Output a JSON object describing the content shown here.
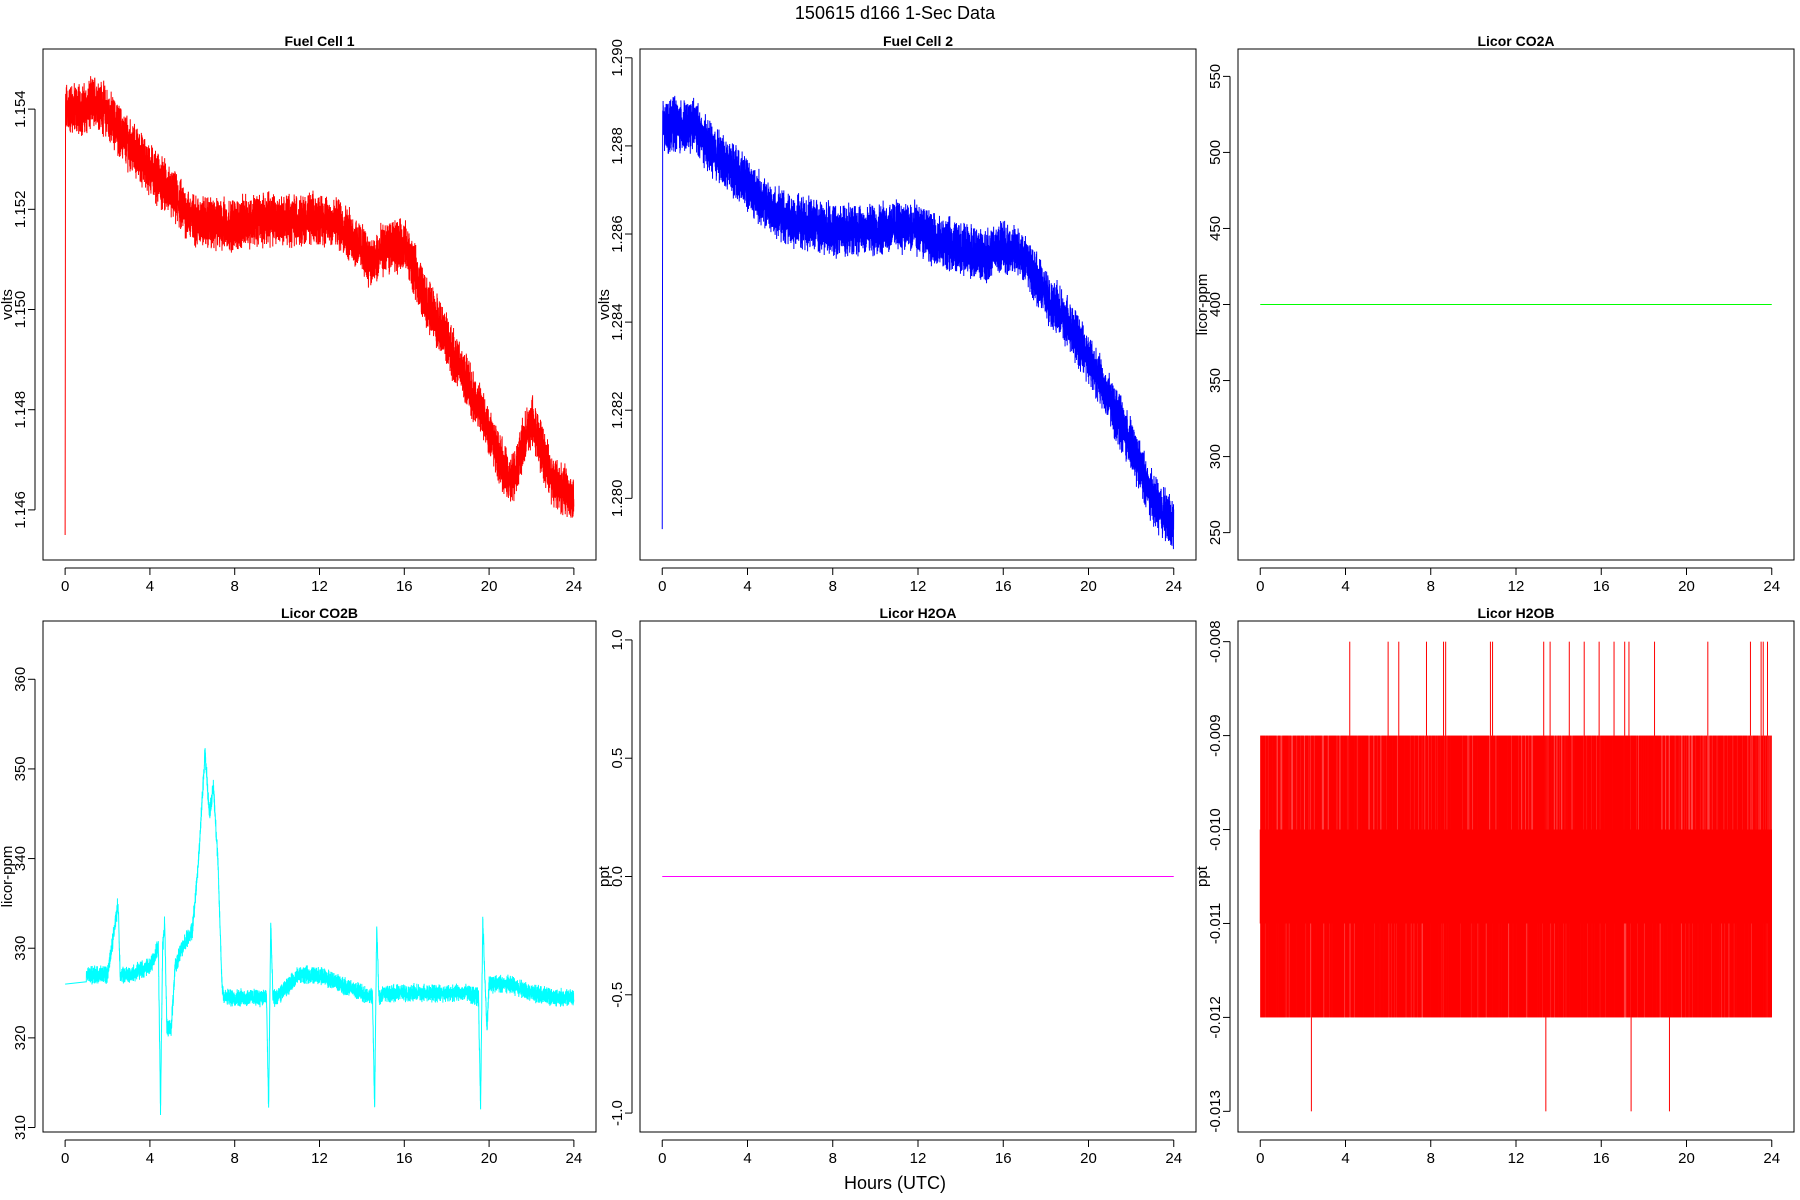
{
  "page_title": "150615   d166   1-Sec Data",
  "shared_xlabel": "Hours (UTC)",
  "chart_data": [
    {
      "type": "line",
      "title": "Fuel Cell 1",
      "ylabel": "volts",
      "color": "#ff0000",
      "xlim": [
        0,
        24
      ],
      "ylim": [
        1.145,
        1.1552
      ],
      "xticks": [
        0,
        4,
        8,
        12,
        16,
        20,
        24
      ],
      "xtick_labels": [
        "0",
        "4",
        "8",
        "12",
        "16",
        "20",
        "24"
      ],
      "yticks": [
        1.146,
        1.148,
        1.15,
        1.152,
        1.154
      ],
      "ytick_labels": [
        "1.146",
        "1.148",
        "1.150",
        "1.152",
        "1.154"
      ],
      "noise_band": 0.0008,
      "x": [
        0,
        0.02,
        0.05,
        0.5,
        1,
        1.5,
        2,
        3,
        4,
        5,
        6,
        7,
        8,
        9,
        10,
        11,
        12,
        13,
        14,
        14.5,
        15,
        16,
        17,
        18,
        19,
        20,
        21,
        22,
        23,
        24
      ],
      "y": [
        1.1455,
        1.154,
        1.154,
        1.154,
        1.154,
        1.1542,
        1.1539,
        1.1533,
        1.1528,
        1.1523,
        1.1518,
        1.1517,
        1.1517,
        1.1518,
        1.1518,
        1.1518,
        1.1518,
        1.1517,
        1.1512,
        1.1509,
        1.1512,
        1.1513,
        1.1502,
        1.1494,
        1.1485,
        1.1476,
        1.1465,
        1.1478,
        1.1466,
        1.1462
      ]
    },
    {
      "type": "line",
      "title": "Fuel Cell 2",
      "ylabel": "volts",
      "color": "#0000ff",
      "xlim": [
        0,
        24
      ],
      "ylim": [
        1.2786,
        1.2902
      ],
      "xticks": [
        0,
        4,
        8,
        12,
        16,
        20,
        24
      ],
      "xtick_labels": [
        "0",
        "4",
        "8",
        "12",
        "16",
        "20",
        "24"
      ],
      "yticks": [
        1.28,
        1.282,
        1.284,
        1.286,
        1.288,
        1.29
      ],
      "ytick_labels": [
        "1.280",
        "1.282",
        "1.284",
        "1.286",
        "1.288",
        "1.290"
      ],
      "noise_band": 0.0009,
      "x": [
        0,
        0.02,
        0.05,
        0.5,
        1,
        1.5,
        2,
        3,
        4,
        5,
        6,
        7,
        8,
        9,
        10,
        11,
        12,
        13,
        14,
        15,
        16,
        17,
        18,
        19,
        20,
        21,
        22,
        23,
        24
      ],
      "y": [
        1.2793,
        1.2884,
        1.2884,
        1.2885,
        1.2884,
        1.2885,
        1.2881,
        1.2876,
        1.2871,
        1.2866,
        1.2863,
        1.2862,
        1.2861,
        1.2861,
        1.2861,
        1.2862,
        1.2861,
        1.2858,
        1.2857,
        1.2855,
        1.2857,
        1.2855,
        1.2846,
        1.284,
        1.2832,
        1.2822,
        1.2812,
        1.28,
        1.2794
      ]
    },
    {
      "type": "line",
      "title": "Licor CO2A",
      "ylabel": "licor-ppm",
      "color": "#00ff00",
      "xlim": [
        0,
        24
      ],
      "ylim": [
        232,
        568
      ],
      "xticks": [
        0,
        4,
        8,
        12,
        16,
        20,
        24
      ],
      "xtick_labels": [
        "0",
        "4",
        "8",
        "12",
        "16",
        "20",
        "24"
      ],
      "yticks": [
        250,
        300,
        350,
        400,
        450,
        500,
        550
      ],
      "ytick_labels": [
        "250",
        "300",
        "350",
        "400",
        "450",
        "500",
        "550"
      ],
      "noise_band": 0,
      "x": [
        0,
        24
      ],
      "y": [
        400,
        400
      ]
    },
    {
      "type": "line",
      "title": "Licor CO2B",
      "ylabel": "licor-ppm",
      "color": "#00ffff",
      "xlim": [
        0,
        24
      ],
      "ylim": [
        309.5,
        366.5
      ],
      "xticks": [
        0,
        4,
        8,
        12,
        16,
        20,
        24
      ],
      "xtick_labels": [
        "0",
        "4",
        "8",
        "12",
        "16",
        "20",
        "24"
      ],
      "yticks": [
        310,
        320,
        330,
        340,
        350,
        360
      ],
      "ytick_labels": [
        "310",
        "320",
        "330",
        "340",
        "350",
        "360"
      ],
      "noise_band": 1.5,
      "x": [
        0,
        1,
        2,
        2.5,
        2.6,
        3,
        4,
        4.4,
        4.5,
        4.6,
        4.7,
        4.8,
        5,
        5.2,
        5.5,
        6,
        6.3,
        6.6,
        6.8,
        7,
        7.2,
        7.4,
        7.5,
        8,
        9,
        9.5,
        9.6,
        9.7,
        9.8,
        10,
        11,
        12,
        13,
        14,
        14.5,
        14.6,
        14.7,
        14.8,
        15,
        16,
        17,
        18,
        19,
        19.5,
        19.6,
        19.7,
        19.9,
        20,
        21,
        22,
        23,
        24
      ],
      "y": [
        326,
        327,
        327,
        335,
        327,
        327,
        328,
        330,
        312,
        330,
        333,
        321,
        321,
        328,
        330,
        332,
        340,
        352,
        345,
        348,
        340,
        326,
        324.5,
        324.5,
        324.5,
        324.5,
        312,
        333,
        324.5,
        324.5,
        327,
        327,
        326,
        325,
        324.5,
        312,
        333,
        324.5,
        325,
        325,
        325,
        325,
        325,
        324.5,
        312,
        333,
        321,
        326,
        326,
        325,
        324.5,
        324.5
      ]
    },
    {
      "type": "line",
      "title": "Licor H2OA",
      "ylabel": "ppt",
      "color": "#ff00ff",
      "xlim": [
        0,
        24
      ],
      "ylim": [
        -1.08,
        1.08
      ],
      "xticks": [
        0,
        4,
        8,
        12,
        16,
        20,
        24
      ],
      "xtick_labels": [
        "0",
        "4",
        "8",
        "12",
        "16",
        "20",
        "24"
      ],
      "yticks": [
        -1,
        -0.5,
        0,
        0.5,
        1
      ],
      "ytick_labels": [
        "-1.0",
        "-0.5",
        "0.0",
        "0.5",
        "1.0"
      ],
      "noise_band": 0,
      "x": [
        0,
        24
      ],
      "y": [
        0,
        0
      ]
    },
    {
      "type": "line",
      "title": "Licor H2OB",
      "ylabel": "ppt",
      "color": "#ff0000",
      "xlim": [
        0,
        24
      ],
      "ylim": [
        -0.01322,
        -0.00778
      ],
      "xticks": [
        0,
        4,
        8,
        12,
        16,
        20,
        24
      ],
      "xtick_labels": [
        "0",
        "4",
        "8",
        "12",
        "16",
        "20",
        "24"
      ],
      "yticks": [
        -0.013,
        -0.012,
        -0.011,
        -0.01,
        -0.009,
        -0.008
      ],
      "ytick_labels": [
        "-0.013",
        "-0.012",
        "-0.011",
        "-0.010",
        "-0.009",
        "-0.008"
      ],
      "noise_band": 0,
      "band_low": -0.012,
      "band_high": -0.009,
      "core_low": -0.011,
      "core_high": -0.01,
      "spikes_high_x": [
        4.2,
        6.0,
        6.5,
        7.8,
        8.6,
        8.7,
        10.8,
        10.9,
        13.3,
        13.6,
        14.5,
        15.2,
        15.9,
        16.6,
        17.1,
        17.3,
        18.5,
        21.0,
        23.0,
        23.5,
        23.6,
        23.8
      ],
      "spikes_low_x": [
        2.4,
        13.4,
        17.4,
        19.2
      ],
      "spike_high_value": -0.008,
      "spike_low_value": -0.013
    }
  ]
}
